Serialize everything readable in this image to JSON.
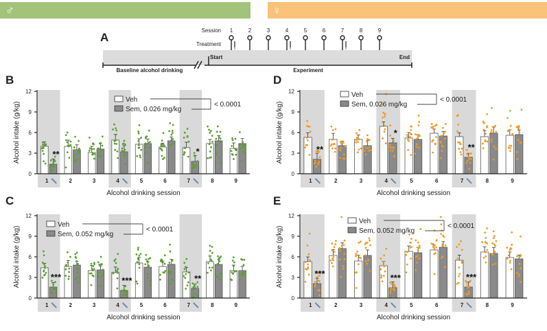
{
  "header": {
    "male_symbol": "♂",
    "female_symbol": "♀",
    "male_color": "#a3c37a",
    "female_color": "#fbc27a"
  },
  "timeline": {
    "panel_letter": "A",
    "session_label": "Session",
    "treatment_label": "Treatment",
    "sessions": [
      "1",
      "2",
      "3",
      "4",
      "5",
      "6",
      "7",
      "8",
      "9"
    ],
    "treatment_sessions": [
      "1",
      "4",
      "7"
    ],
    "start_label": "Start",
    "end_label": "End",
    "baseline_label": "Baseline alcohol drinking",
    "experiment_label": "Experiment"
  },
  "colors": {
    "veh_fill": "#ffffff",
    "sem_fill": "#8a8a8a",
    "male_dot": "#5aa12e",
    "female_dot": "#f29a1f",
    "treatment_shade": "#d9d9d9"
  },
  "chart_data": [
    {
      "panel": "B",
      "type": "bar",
      "sex": "male",
      "categories": [
        "1",
        "2",
        "3",
        "4",
        "5",
        "6",
        "7",
        "8",
        "9"
      ],
      "treatment_categories": [
        "1",
        "4",
        "7"
      ],
      "series": [
        {
          "name": "Veh",
          "values": [
            4.0,
            4.0,
            3.1,
            4.9,
            4.3,
            3.9,
            3.8,
            4.4,
            3.7
          ]
        },
        {
          "name": "Sem, 0.026 mg/kg",
          "values": [
            1.4,
            3.5,
            3.6,
            3.2,
            4.4,
            4.8,
            1.8,
            4.8,
            4.4
          ]
        }
      ],
      "significance": {
        "1": "**",
        "7": "*"
      },
      "p_value_label": "< 0.0001",
      "ylabel": "Alcohol intake (g/kg)",
      "xlabel": "Alcohol drinking session",
      "ylim": [
        0,
        12
      ],
      "yticks": [
        0,
        3,
        6,
        9,
        12
      ]
    },
    {
      "panel": "D",
      "type": "bar",
      "sex": "female",
      "categories": [
        "1",
        "2",
        "3",
        "4",
        "5",
        "6",
        "7",
        "8",
        "9"
      ],
      "treatment_categories": [
        "1",
        "4",
        "7"
      ],
      "series": [
        {
          "name": "Veh",
          "values": [
            5.3,
            5.0,
            5.0,
            6.9,
            5.2,
            5.9,
            5.4,
            5.4,
            5.6
          ]
        },
        {
          "name": "Sem, 0.026 mg/kg",
          "values": [
            2.1,
            4.1,
            4.1,
            4.5,
            5.0,
            5.5,
            2.4,
            5.9,
            5.7
          ]
        }
      ],
      "significance": {
        "1": "**",
        "4": "*",
        "7": "**"
      },
      "p_value_label": "< 0.0001",
      "ylabel": "Alcohol intake (g/kg)",
      "xlabel": "Alcohol drinking session",
      "ylim": [
        0,
        12
      ],
      "yticks": [
        0,
        3,
        6,
        9,
        12
      ]
    },
    {
      "panel": "C",
      "type": "bar",
      "sex": "male",
      "categories": [
        "1",
        "2",
        "3",
        "4",
        "5",
        "6",
        "7",
        "8",
        "9"
      ],
      "treatment_categories": [
        "1",
        "4",
        "7"
      ],
      "series": [
        {
          "name": "Veh",
          "values": [
            4.4,
            4.6,
            4.0,
            3.7,
            5.1,
            4.6,
            3.8,
            5.3,
            4.0
          ]
        },
        {
          "name": "Sem, 0.052 mg/kg",
          "values": [
            1.6,
            4.8,
            4.1,
            1.1,
            4.5,
            4.9,
            1.4,
            4.9,
            4.0
          ]
        }
      ],
      "significance": {
        "1": "***",
        "4": "***",
        "7": "**"
      },
      "p_value_label": "< 0.0001",
      "ylabel": "Alcohol intake (g/kg)",
      "xlabel": "Alcohol drinking session",
      "ylim": [
        0,
        12
      ],
      "yticks": [
        0,
        3,
        6,
        9,
        12
      ]
    },
    {
      "panel": "E",
      "type": "bar",
      "sex": "female",
      "categories": [
        "1",
        "2",
        "3",
        "4",
        "5",
        "6",
        "7",
        "8",
        "9"
      ],
      "treatment_categories": [
        "1",
        "4",
        "7"
      ],
      "series": [
        {
          "name": "Veh",
          "values": [
            5.3,
            6.2,
            5.4,
            4.7,
            6.8,
            7.0,
            5.5,
            6.7,
            5.9
          ]
        },
        {
          "name": "Sem, 0.052 mg/kg",
          "values": [
            2.1,
            7.2,
            6.2,
            1.5,
            6.6,
            7.4,
            1.6,
            6.5,
            5.7
          ]
        }
      ],
      "significance": {
        "1": "***",
        "4": "***",
        "7": "***"
      },
      "p_value_label": "< 0.0001",
      "ylabel": "Alcohol intake (g/kg)",
      "xlabel": "Alcohol drinking session",
      "ylim": [
        0,
        12
      ],
      "yticks": [
        0,
        3,
        6,
        9,
        12
      ]
    }
  ]
}
